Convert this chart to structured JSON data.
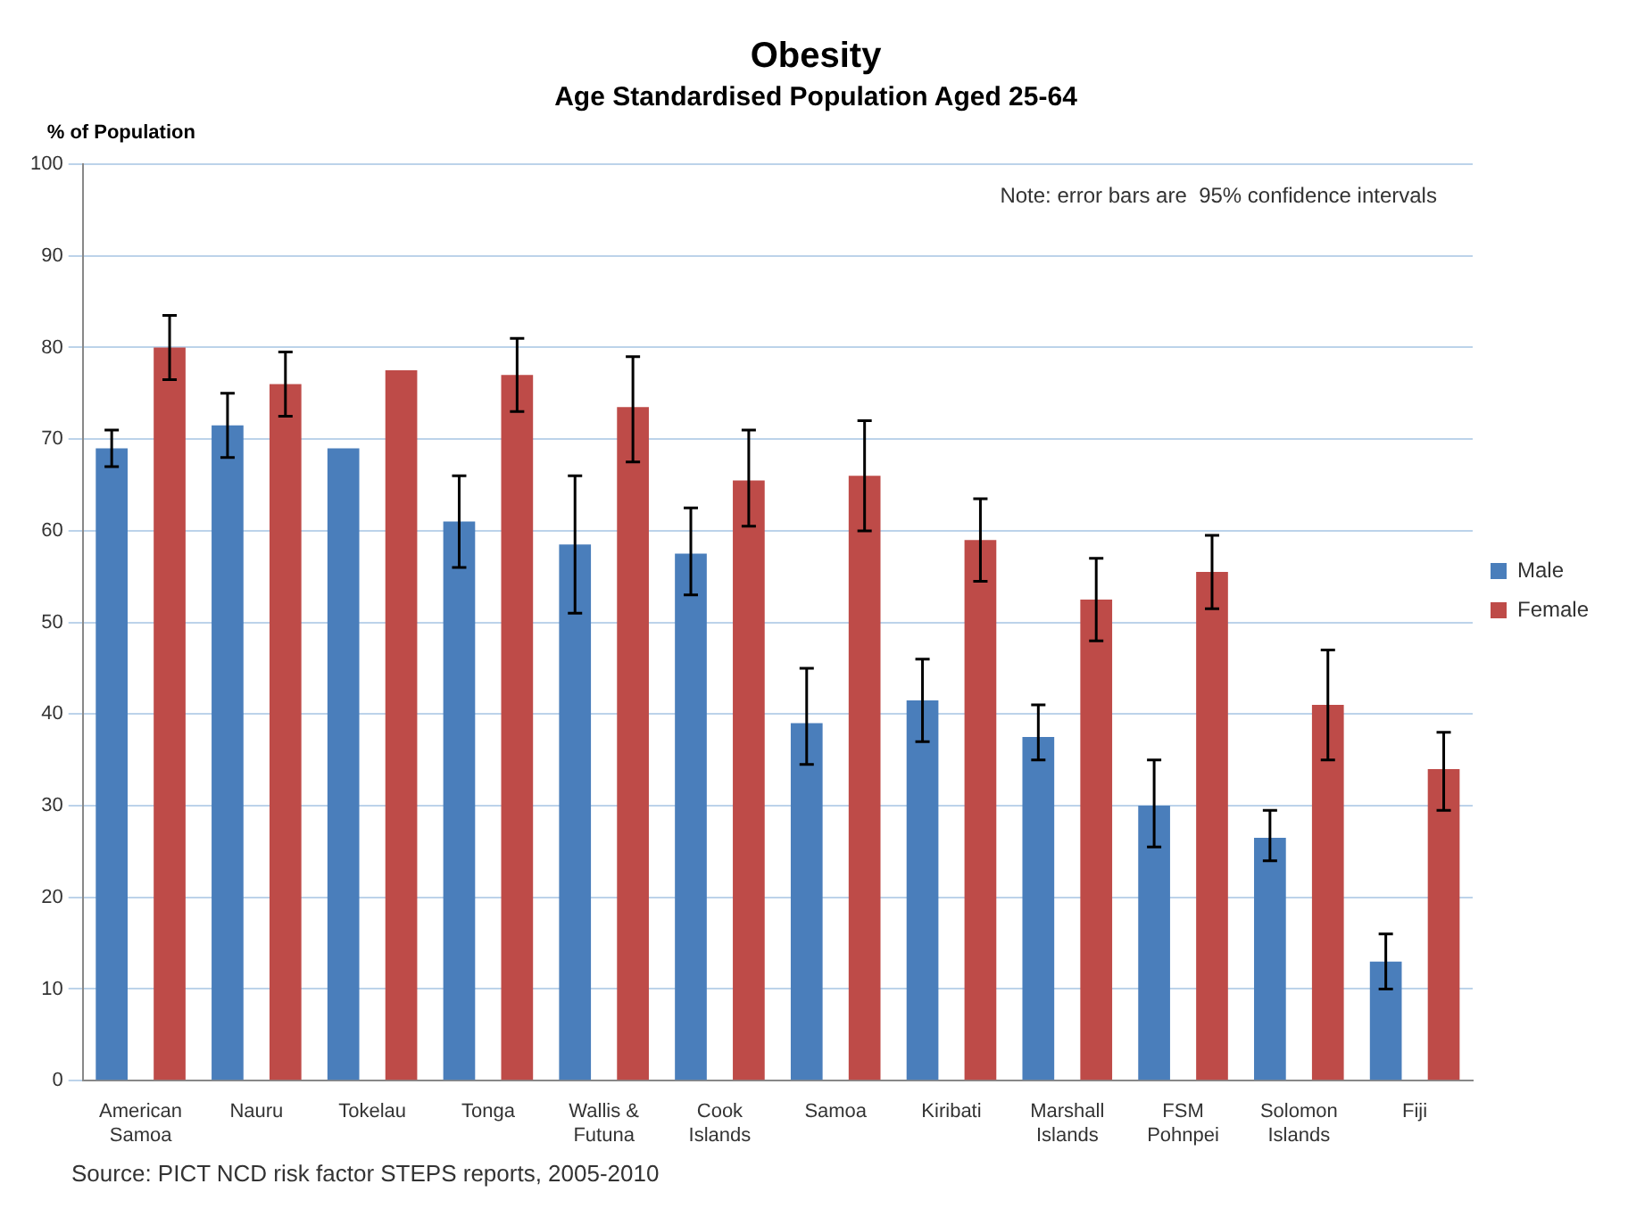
{
  "chart_data": {
    "type": "bar",
    "title": "Obesity",
    "subtitle": "Age Standardised Population Aged 25-64",
    "ylabel": "% of Population",
    "categories": [
      "American Samoa",
      "Nauru",
      "Tokelau",
      "Tonga",
      "Wallis & Futuna",
      "Cook Islands",
      "Samoa",
      "Kiribati",
      "Marshall Islands",
      "FSM Pohnpei",
      "Solomon Islands",
      "Fiji"
    ],
    "series": [
      {
        "name": "Male",
        "color": "#4a7ebb",
        "values": [
          69,
          71.5,
          69,
          61,
          58.5,
          57.5,
          39,
          41.5,
          37.5,
          30,
          26.5,
          13
        ],
        "errors": [
          [
            67,
            71
          ],
          [
            68,
            75
          ],
          null,
          [
            56,
            66
          ],
          [
            51,
            66
          ],
          [
            53,
            62.5
          ],
          [
            34.5,
            45
          ],
          [
            37,
            46
          ],
          [
            35,
            41
          ],
          [
            25.5,
            35
          ],
          [
            24,
            29.5
          ],
          [
            10,
            16
          ]
        ]
      },
      {
        "name": "Female",
        "color": "#be4b48",
        "values": [
          80,
          76,
          77.5,
          77,
          73.5,
          65.5,
          66,
          59,
          52.5,
          55.5,
          41,
          34
        ],
        "errors": [
          [
            76.5,
            83.5
          ],
          [
            72.5,
            79.5
          ],
          null,
          [
            73,
            81
          ],
          [
            67.5,
            79
          ],
          [
            60.5,
            71
          ],
          [
            60,
            72
          ],
          [
            54.5,
            63.5
          ],
          [
            48,
            57
          ],
          [
            51.5,
            59.5
          ],
          [
            35,
            47
          ],
          [
            29.5,
            38
          ]
        ]
      }
    ],
    "ylim": [
      0,
      100
    ],
    "yticks": [
      0,
      10,
      20,
      30,
      40,
      50,
      60,
      70,
      80,
      90,
      100
    ],
    "grid": "y",
    "legend": "right",
    "annotations": [
      "Note: error bars are  95% confidence intervals",
      "Source: PICT NCD risk factor STEPS reports, 2005-2010"
    ]
  }
}
